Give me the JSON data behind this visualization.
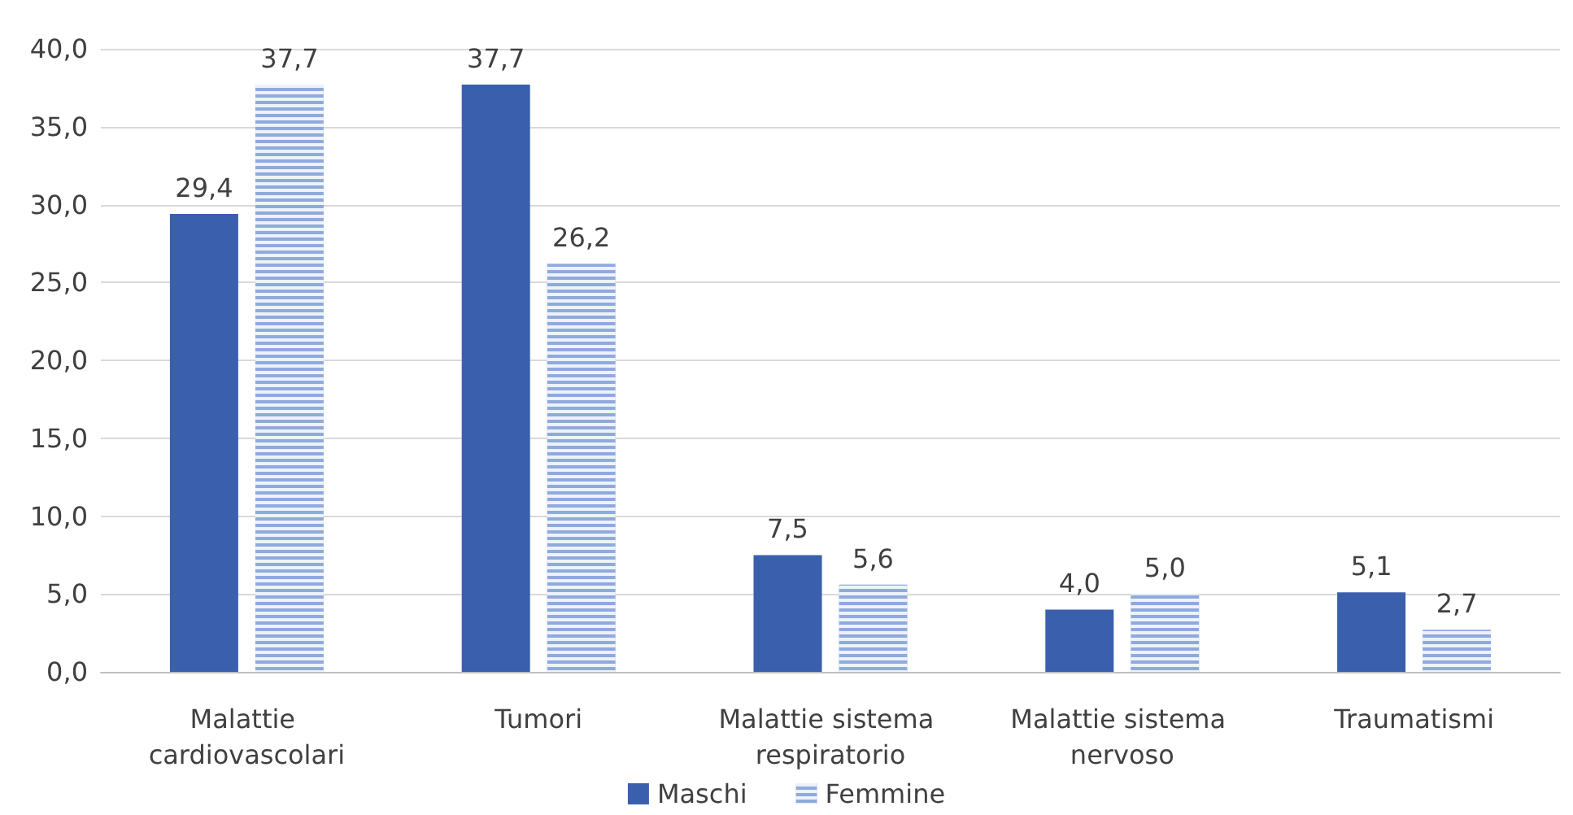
{
  "chart_data": {
    "type": "bar",
    "categories": [
      "Malattie cardiovascolari",
      "Tumori",
      "Malattie sistema respiratorio",
      "Malattie sistema nervoso",
      "Traumatismi"
    ],
    "series": [
      {
        "name": "Maschi",
        "color": "#3a5fad",
        "values": [
          29.4,
          37.7,
          7.5,
          4.0,
          5.1
        ],
        "value_labels": [
          "29,4",
          "37,7",
          "7,5",
          "4,0",
          "5,1"
        ]
      },
      {
        "name": "Femmine",
        "color": "#8faadc",
        "values": [
          37.7,
          26.2,
          5.6,
          5.0,
          2.7
        ],
        "value_labels": [
          "37,7",
          "26,2",
          "5,6",
          "5,0",
          "2,7"
        ]
      }
    ],
    "ylim": [
      0,
      40
    ],
    "yticks": [
      {
        "value": 0,
        "label": "0,0"
      },
      {
        "value": 5,
        "label": "5,0"
      },
      {
        "value": 10,
        "label": "10,0"
      },
      {
        "value": 15,
        "label": "15,0"
      },
      {
        "value": 20,
        "label": "20,0"
      },
      {
        "value": 25,
        "label": "25,0"
      },
      {
        "value": 30,
        "label": "30,0"
      },
      {
        "value": 35,
        "label": "35,0"
      },
      {
        "value": 40,
        "label": "40,0"
      }
    ],
    "grid": "y",
    "legend": "bottom"
  }
}
